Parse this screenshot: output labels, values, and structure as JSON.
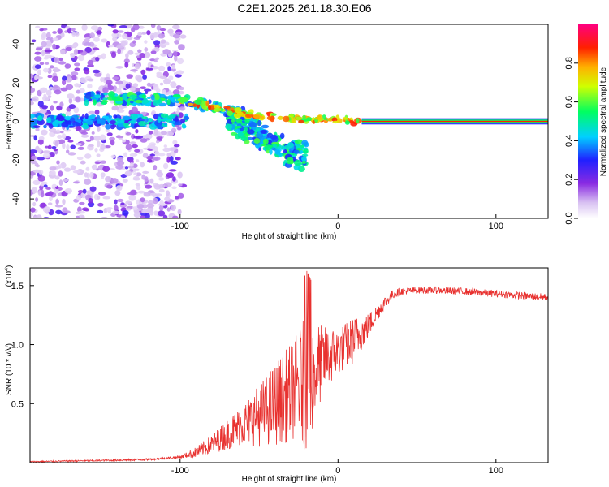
{
  "title": "C2E1.2025.261.18.30.E06",
  "chart_data": [
    {
      "type": "heatmap",
      "name": "spectrogram",
      "xlabel": "Height of straight line (km)",
      "ylabel": "Frequency (Hz)",
      "xlim": [
        -195,
        133
      ],
      "ylim": [
        -50,
        50
      ],
      "xticks": [
        -100,
        0,
        100
      ],
      "yticks": [
        -40,
        -20,
        0,
        20,
        40
      ],
      "colorbar": {
        "label": "Normalized spectral amplitude",
        "range": [
          0,
          1
        ],
        "ticks": [
          "0.0",
          "0.2",
          "0.4",
          "0.6",
          "0.8"
        ]
      },
      "features": [
        {
          "desc": "noise scatter",
          "x_range": [
            -195,
            -100
          ],
          "y_range": [
            -50,
            50
          ]
        },
        {
          "desc": "upper band",
          "x": [
            -155,
            -100,
            -60
          ],
          "y": [
            12,
            12,
            5
          ]
        },
        {
          "desc": "lower band",
          "x": [
            -195,
            -100
          ],
          "y": [
            0,
            0
          ]
        },
        {
          "desc": "descending branch",
          "x": [
            -65,
            -45,
            -30
          ],
          "y": [
            -3,
            -12,
            -20
          ]
        },
        {
          "desc": "carrier line",
          "x": [
            -20,
            133
          ],
          "y": [
            0,
            0
          ]
        }
      ]
    },
    {
      "type": "line",
      "name": "snr",
      "xlabel": "Height of straight line (km)",
      "ylabel": "SNR (10 * v/v)",
      "yscale_note": "(x10",
      "yscale_exp": "4",
      "xlim": [
        -195,
        133
      ],
      "ylim": [
        0,
        1.65
      ],
      "xticks": [
        -100,
        0,
        100
      ],
      "yticks": [
        0.5,
        1.0,
        1.5
      ],
      "ytick_labels": [
        "0.5",
        "1.0",
        "1.5"
      ],
      "color": "#e8312f",
      "envelope": {
        "x": [
          -195,
          -150,
          -120,
          -100,
          -90,
          -80,
          -70,
          -60,
          -50,
          -40,
          -30,
          -25,
          -20,
          -15,
          -10,
          -5,
          0,
          5,
          10,
          15,
          20,
          25,
          30,
          35,
          40,
          50,
          60,
          80,
          100,
          120,
          133
        ],
        "y": [
          0.01,
          0.02,
          0.03,
          0.05,
          0.1,
          0.18,
          0.28,
          0.38,
          0.48,
          0.6,
          0.72,
          0.8,
          0.85,
          0.9,
          0.95,
          0.98,
          1.0,
          1.05,
          1.1,
          1.15,
          1.2,
          1.3,
          1.38,
          1.44,
          1.46,
          1.47,
          1.47,
          1.46,
          1.44,
          1.42,
          1.41
        ]
      },
      "noise_amp": {
        "x": [
          -195,
          -100,
          -80,
          -60,
          -40,
          -25,
          -20,
          -10,
          0,
          10,
          20,
          30,
          40,
          60,
          133
        ],
        "y": [
          0.005,
          0.01,
          0.08,
          0.18,
          0.35,
          0.45,
          0.6,
          0.3,
          0.2,
          0.2,
          0.1,
          0.05,
          0.03,
          0.03,
          0.03
        ]
      }
    }
  ]
}
